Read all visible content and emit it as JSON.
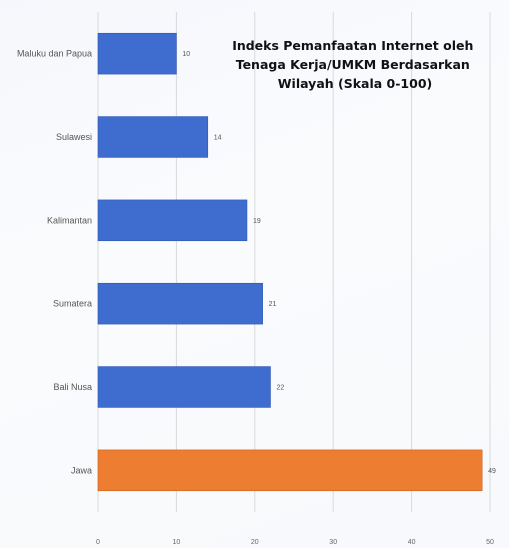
{
  "chart_data": {
    "type": "bar",
    "orientation": "horizontal",
    "title": [
      "Indeks Pemanfaatan Internet oleh",
      "Tenaga Kerja/UMKM Berdasarkan",
      "Wilayah (Skala 0-100)"
    ],
    "categories": [
      "Maluku dan Papua",
      "Sulawesi",
      "Kalimantan",
      "Sumatera",
      "Bali Nusa",
      "Jawa"
    ],
    "values": [
      10,
      14,
      19,
      21,
      22,
      49
    ],
    "xlim": [
      0,
      50
    ],
    "xticks": [
      0,
      10,
      20,
      30,
      40,
      50
    ],
    "grid": true,
    "colors": {
      "default": "#3f6ccf",
      "highlight": "#ed7d31",
      "gridline": "#d9d9d9"
    },
    "highlight_category": "Jawa"
  }
}
